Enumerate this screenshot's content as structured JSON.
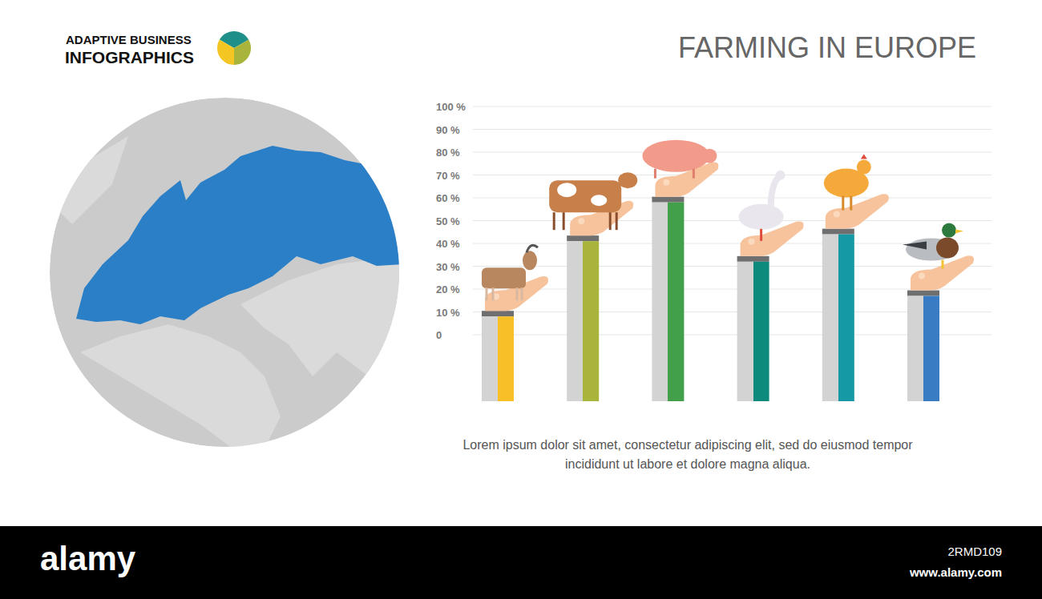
{
  "header": {
    "brand_line1": "ADAPTIVE BUSINESS",
    "brand_line2": "INFOGRAPHICS"
  },
  "chart_data": {
    "type": "bar",
    "title": "FARMING IN EUROPE",
    "categories": [
      null,
      null,
      null,
      null,
      null,
      null
    ],
    "values": [
      8,
      41,
      58,
      32,
      44,
      17
    ],
    "colors": [
      "#f9bf26",
      "#a9b43a",
      "#43a04a",
      "#0e8a7c",
      "#1499a5",
      "#3a7cc4"
    ],
    "ylim": [
      0,
      100
    ],
    "yticks": [
      0,
      {
        "value": 10,
        "label": "10 %"
      },
      {
        "value": 20,
        "label": "20 %"
      },
      {
        "value": 30,
        "label": "30 %"
      },
      {
        "value": 40,
        "label": "40 %"
      },
      {
        "value": 50,
        "label": "50 %"
      },
      {
        "value": 60,
        "label": "60 %"
      },
      {
        "value": 70,
        "label": "70 %"
      },
      {
        "value": 80,
        "label": "80 %"
      },
      {
        "value": 90,
        "label": "90 %"
      },
      {
        "value": 100,
        "label": "100 %"
      }
    ],
    "grid": true,
    "tick_labels": "y",
    "data_labels": false,
    "annotations": [
      "Lorem ipsum dolor sit amet, consectetur adipiscing elit, sed do eiusmod tempor",
      "incididunt ut labore et dolore magna aliqua."
    ]
  },
  "footer": {
    "brand": "alamy",
    "image_id": "2RMD109",
    "url": "www.alamy.com"
  }
}
